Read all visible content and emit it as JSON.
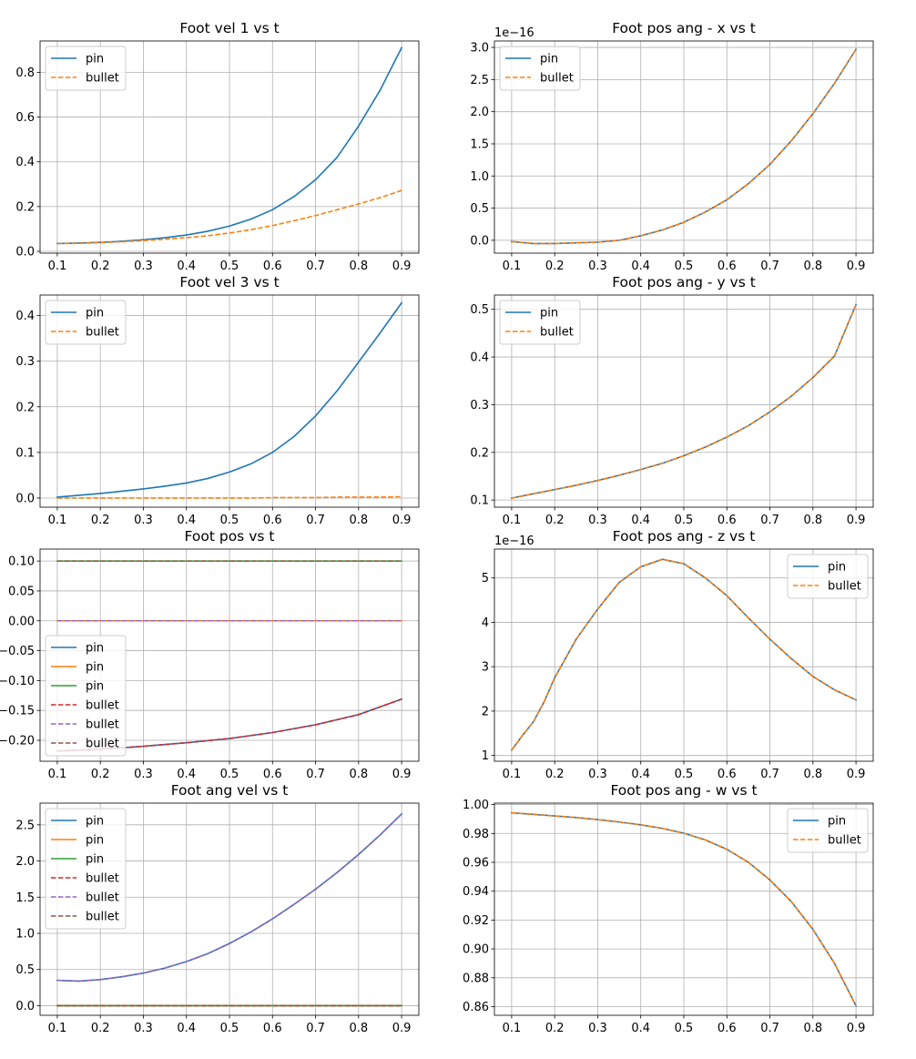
{
  "colors": {
    "c0": "#1f77b4",
    "c1": "#ff7f0e",
    "c2": "#2ca02c",
    "c3": "#d62728",
    "c4": "#9467bd",
    "c5": "#8c564b",
    "grid": "#b0b0b0"
  },
  "chart_data": [
    {
      "type": "line",
      "title": "Foot vel 1 vs t",
      "xlim": [
        0.06,
        0.94
      ],
      "ylim": [
        -0.008,
        0.94
      ],
      "xticks": [
        "0.1",
        "0.2",
        "0.3",
        "0.4",
        "0.5",
        "0.6",
        "0.7",
        "0.8",
        "0.9"
      ],
      "yticks": [
        "0.0",
        "0.2",
        "0.4",
        "0.6",
        "0.8"
      ],
      "legend_loc": "upper-left",
      "x": [
        0.1,
        0.15,
        0.2,
        0.25,
        0.3,
        0.35,
        0.4,
        0.45,
        0.5,
        0.55,
        0.6,
        0.65,
        0.7,
        0.75,
        0.8,
        0.85,
        0.9
      ],
      "series": [
        {
          "name": "pin",
          "color": "c0",
          "dash": false,
          "values": [
            0.035,
            0.037,
            0.04,
            0.045,
            0.052,
            0.061,
            0.073,
            0.09,
            0.113,
            0.144,
            0.186,
            0.245,
            0.32,
            0.42,
            0.56,
            0.72,
            0.91
          ]
        },
        {
          "name": "bullet",
          "color": "c1",
          "dash": true,
          "values": [
            0.035,
            0.036,
            0.039,
            0.043,
            0.048,
            0.054,
            0.061,
            0.07,
            0.082,
            0.097,
            0.115,
            0.137,
            0.16,
            0.186,
            0.212,
            0.24,
            0.272
          ]
        }
      ]
    },
    {
      "type": "line",
      "title": "Foot pos ang - x vs t",
      "offset_text": "1e−16",
      "xlim": [
        0.06,
        0.94
      ],
      "ylim": [
        -0.2,
        3.1
      ],
      "xticks": [
        "0.1",
        "0.2",
        "0.3",
        "0.4",
        "0.5",
        "0.6",
        "0.7",
        "0.8",
        "0.9"
      ],
      "yticks": [
        "0.0",
        "0.5",
        "1.0",
        "1.5",
        "2.0",
        "2.5",
        "3.0"
      ],
      "legend_loc": "upper-left",
      "x": [
        0.1,
        0.15,
        0.2,
        0.25,
        0.3,
        0.35,
        0.4,
        0.45,
        0.5,
        0.55,
        0.6,
        0.65,
        0.7,
        0.75,
        0.8,
        0.85,
        0.9
      ],
      "series": [
        {
          "name": "pin",
          "color": "c0",
          "dash": false,
          "values": [
            -0.02,
            -0.05,
            -0.05,
            -0.04,
            -0.03,
            0.0,
            0.07,
            0.16,
            0.28,
            0.44,
            0.63,
            0.88,
            1.18,
            1.55,
            1.97,
            2.44,
            2.97
          ]
        },
        {
          "name": "bullet",
          "color": "c1",
          "dash": true,
          "values": [
            -0.02,
            -0.05,
            -0.05,
            -0.04,
            -0.03,
            0.0,
            0.07,
            0.16,
            0.28,
            0.44,
            0.63,
            0.88,
            1.18,
            1.55,
            1.97,
            2.44,
            2.97
          ]
        }
      ]
    },
    {
      "type": "line",
      "title": "Foot vel 3 vs t",
      "xlim": [
        0.06,
        0.94
      ],
      "ylim": [
        -0.02,
        0.445
      ],
      "xticks": [
        "0.1",
        "0.2",
        "0.3",
        "0.4",
        "0.5",
        "0.6",
        "0.7",
        "0.8",
        "0.9"
      ],
      "yticks": [
        "0.0",
        "0.1",
        "0.2",
        "0.3",
        "0.4"
      ],
      "legend_loc": "upper-left",
      "x": [
        0.1,
        0.15,
        0.2,
        0.25,
        0.3,
        0.35,
        0.4,
        0.45,
        0.5,
        0.55,
        0.6,
        0.65,
        0.7,
        0.75,
        0.8,
        0.85,
        0.9
      ],
      "series": [
        {
          "name": "pin",
          "color": "c0",
          "dash": false,
          "values": [
            0.002,
            0.006,
            0.01,
            0.015,
            0.02,
            0.026,
            0.033,
            0.043,
            0.057,
            0.075,
            0.1,
            0.135,
            0.18,
            0.235,
            0.298,
            0.362,
            0.428
          ]
        },
        {
          "name": "bullet",
          "color": "c1",
          "dash": true,
          "values": [
            0.0,
            0.0,
            0.0,
            0.0,
            0.0,
            0.0,
            0.0,
            0.0,
            0.0,
            0.0,
            0.001,
            0.001,
            0.001,
            0.002,
            0.002,
            0.002,
            0.003
          ]
        }
      ]
    },
    {
      "type": "line",
      "title": "Foot pos ang - y vs t",
      "xlim": [
        0.06,
        0.94
      ],
      "ylim": [
        0.085,
        0.53
      ],
      "xticks": [
        "0.1",
        "0.2",
        "0.3",
        "0.4",
        "0.5",
        "0.6",
        "0.7",
        "0.8",
        "0.9"
      ],
      "yticks": [
        "0.1",
        "0.2",
        "0.3",
        "0.4",
        "0.5"
      ],
      "legend_loc": "upper-left",
      "x": [
        0.1,
        0.15,
        0.2,
        0.25,
        0.3,
        0.35,
        0.4,
        0.45,
        0.5,
        0.55,
        0.6,
        0.65,
        0.7,
        0.75,
        0.8,
        0.85,
        0.9
      ],
      "series": [
        {
          "name": "pin",
          "color": "c0",
          "dash": false,
          "values": [
            0.104,
            0.113,
            0.122,
            0.131,
            0.141,
            0.152,
            0.164,
            0.177,
            0.193,
            0.211,
            0.232,
            0.256,
            0.285,
            0.318,
            0.357,
            0.402,
            0.51
          ]
        },
        {
          "name": "bullet",
          "color": "c1",
          "dash": true,
          "values": [
            0.104,
            0.113,
            0.122,
            0.131,
            0.141,
            0.152,
            0.164,
            0.177,
            0.193,
            0.211,
            0.232,
            0.256,
            0.285,
            0.318,
            0.357,
            0.402,
            0.51
          ]
        }
      ]
    },
    {
      "type": "line",
      "title": "Foot pos vs t",
      "xlim": [
        0.06,
        0.94
      ],
      "ylim": [
        -0.235,
        0.12
      ],
      "xticks": [
        "0.1",
        "0.2",
        "0.3",
        "0.4",
        "0.5",
        "0.6",
        "0.7",
        "0.8",
        "0.9"
      ],
      "yticks": [
        "0.10",
        "0.05",
        "0.00",
        "−0.05",
        "−0.10",
        "−0.15",
        "−0.20"
      ],
      "legend_loc": "lower-left",
      "x": [
        0.1,
        0.2,
        0.3,
        0.4,
        0.5,
        0.6,
        0.7,
        0.8,
        0.9
      ],
      "series": [
        {
          "name": "pin",
          "color": "c0",
          "dash": false,
          "values": [
            -0.218,
            -0.215,
            -0.21,
            -0.204,
            -0.197,
            -0.187,
            -0.174,
            -0.157,
            -0.131
          ]
        },
        {
          "name": "pin",
          "color": "c1",
          "dash": false,
          "values": [
            0.0,
            0.0,
            0.0,
            0.0,
            0.0,
            0.0,
            0.0,
            0.0,
            0.0
          ]
        },
        {
          "name": "pin",
          "color": "c2",
          "dash": false,
          "values": [
            0.1,
            0.1,
            0.1,
            0.1,
            0.1,
            0.1,
            0.1,
            0.1,
            0.1
          ]
        },
        {
          "name": "bullet",
          "color": "c3",
          "dash": true,
          "values": [
            -0.218,
            -0.215,
            -0.21,
            -0.204,
            -0.197,
            -0.187,
            -0.174,
            -0.157,
            -0.131
          ]
        },
        {
          "name": "bullet",
          "color": "c4",
          "dash": true,
          "values": [
            0.0,
            0.0,
            0.0,
            0.0,
            0.0,
            0.0,
            0.0,
            0.0,
            0.0
          ]
        },
        {
          "name": "bullet",
          "color": "c5",
          "dash": true,
          "values": [
            0.1,
            0.1,
            0.1,
            0.1,
            0.1,
            0.1,
            0.1,
            0.1,
            0.1
          ]
        }
      ]
    },
    {
      "type": "line",
      "title": "Foot pos ang - z vs t",
      "offset_text": "1e−16",
      "xlim": [
        0.06,
        0.94
      ],
      "ylim": [
        0.87,
        5.65
      ],
      "xticks": [
        "0.1",
        "0.2",
        "0.3",
        "0.4",
        "0.5",
        "0.6",
        "0.7",
        "0.8",
        "0.9"
      ],
      "yticks": [
        "1",
        "2",
        "3",
        "4",
        "5"
      ],
      "legend_loc": "upper-right",
      "x": [
        0.1,
        0.125,
        0.15,
        0.175,
        0.2,
        0.25,
        0.3,
        0.35,
        0.4,
        0.45,
        0.5,
        0.55,
        0.6,
        0.65,
        0.7,
        0.75,
        0.8,
        0.85,
        0.9
      ],
      "series": [
        {
          "name": "pin",
          "color": "c0",
          "dash": false,
          "values": [
            1.12,
            1.45,
            1.75,
            2.2,
            2.75,
            3.62,
            4.3,
            4.9,
            5.25,
            5.42,
            5.32,
            5.0,
            4.6,
            4.1,
            3.62,
            3.18,
            2.78,
            2.48,
            2.25
          ]
        },
        {
          "name": "bullet",
          "color": "c1",
          "dash": true,
          "values": [
            1.12,
            1.45,
            1.75,
            2.2,
            2.75,
            3.62,
            4.3,
            4.9,
            5.25,
            5.42,
            5.32,
            5.0,
            4.6,
            4.1,
            3.62,
            3.18,
            2.78,
            2.48,
            2.25
          ]
        }
      ]
    },
    {
      "type": "line",
      "title": "Foot ang vel vs t",
      "xlim": [
        0.06,
        0.94
      ],
      "ylim": [
        -0.133,
        2.8
      ],
      "xticks": [
        "0.1",
        "0.2",
        "0.3",
        "0.4",
        "0.5",
        "0.6",
        "0.7",
        "0.8",
        "0.9"
      ],
      "yticks": [
        "0.0",
        "0.5",
        "1.0",
        "1.5",
        "2.0",
        "2.5"
      ],
      "legend_loc": "upper-left",
      "x": [
        0.1,
        0.15,
        0.2,
        0.25,
        0.3,
        0.35,
        0.4,
        0.45,
        0.5,
        0.55,
        0.6,
        0.65,
        0.7,
        0.75,
        0.8,
        0.85,
        0.9
      ],
      "series": [
        {
          "name": "pin",
          "color": "c0",
          "dash": false,
          "values": [
            0.35,
            0.34,
            0.36,
            0.4,
            0.45,
            0.52,
            0.61,
            0.72,
            0.86,
            1.02,
            1.2,
            1.4,
            1.61,
            1.84,
            2.09,
            2.36,
            2.65
          ]
        },
        {
          "name": "pin",
          "color": "c1",
          "dash": false,
          "values": [
            0,
            0,
            0,
            0,
            0,
            0,
            0,
            0,
            0,
            0,
            0,
            0,
            0,
            0,
            0,
            0,
            0
          ]
        },
        {
          "name": "pin",
          "color": "c2",
          "dash": false,
          "values": [
            0,
            0,
            0,
            0,
            0,
            0,
            0,
            0,
            0,
            0,
            0,
            0,
            0,
            0,
            0,
            0,
            0
          ]
        },
        {
          "name": "bullet",
          "color": "c3",
          "dash": true,
          "values": [
            0,
            0,
            0,
            0,
            0,
            0,
            0,
            0,
            0,
            0,
            0,
            0,
            0,
            0,
            0,
            0,
            0
          ]
        },
        {
          "name": "bullet",
          "color": "c4",
          "dash": true,
          "values": [
            0.35,
            0.34,
            0.36,
            0.4,
            0.45,
            0.52,
            0.61,
            0.72,
            0.86,
            1.02,
            1.2,
            1.4,
            1.61,
            1.84,
            2.09,
            2.36,
            2.65
          ]
        },
        {
          "name": "bullet",
          "color": "c5",
          "dash": true,
          "values": [
            0,
            0,
            0,
            0,
            0,
            0,
            0,
            0,
            0,
            0,
            0,
            0,
            0,
            0,
            0,
            0,
            0
          ]
        }
      ]
    },
    {
      "type": "line",
      "title": "Foot pos ang - w vs t",
      "xlim": [
        0.06,
        0.94
      ],
      "ylim": [
        0.854,
        1.001
      ],
      "xticks": [
        "0.1",
        "0.2",
        "0.3",
        "0.4",
        "0.5",
        "0.6",
        "0.7",
        "0.8",
        "0.9"
      ],
      "yticks": [
        "1.00",
        "0.98",
        "0.96",
        "0.94",
        "0.92",
        "0.90",
        "0.88",
        "0.86"
      ],
      "legend_loc": "upper-right",
      "x": [
        0.1,
        0.15,
        0.2,
        0.25,
        0.3,
        0.35,
        0.4,
        0.45,
        0.5,
        0.55,
        0.6,
        0.65,
        0.7,
        0.75,
        0.8,
        0.85,
        0.9
      ],
      "series": [
        {
          "name": "pin",
          "color": "c0",
          "dash": false,
          "values": [
            0.9943,
            0.9932,
            0.9921,
            0.991,
            0.9896,
            0.9879,
            0.986,
            0.9835,
            0.9802,
            0.9755,
            0.969,
            0.96,
            0.9478,
            0.9327,
            0.9135,
            0.89,
            0.8605
          ]
        },
        {
          "name": "bullet",
          "color": "c1",
          "dash": true,
          "values": [
            0.9943,
            0.9932,
            0.9921,
            0.991,
            0.9896,
            0.9879,
            0.986,
            0.9835,
            0.9802,
            0.9755,
            0.969,
            0.96,
            0.9478,
            0.9327,
            0.9135,
            0.89,
            0.8605
          ]
        }
      ]
    }
  ]
}
